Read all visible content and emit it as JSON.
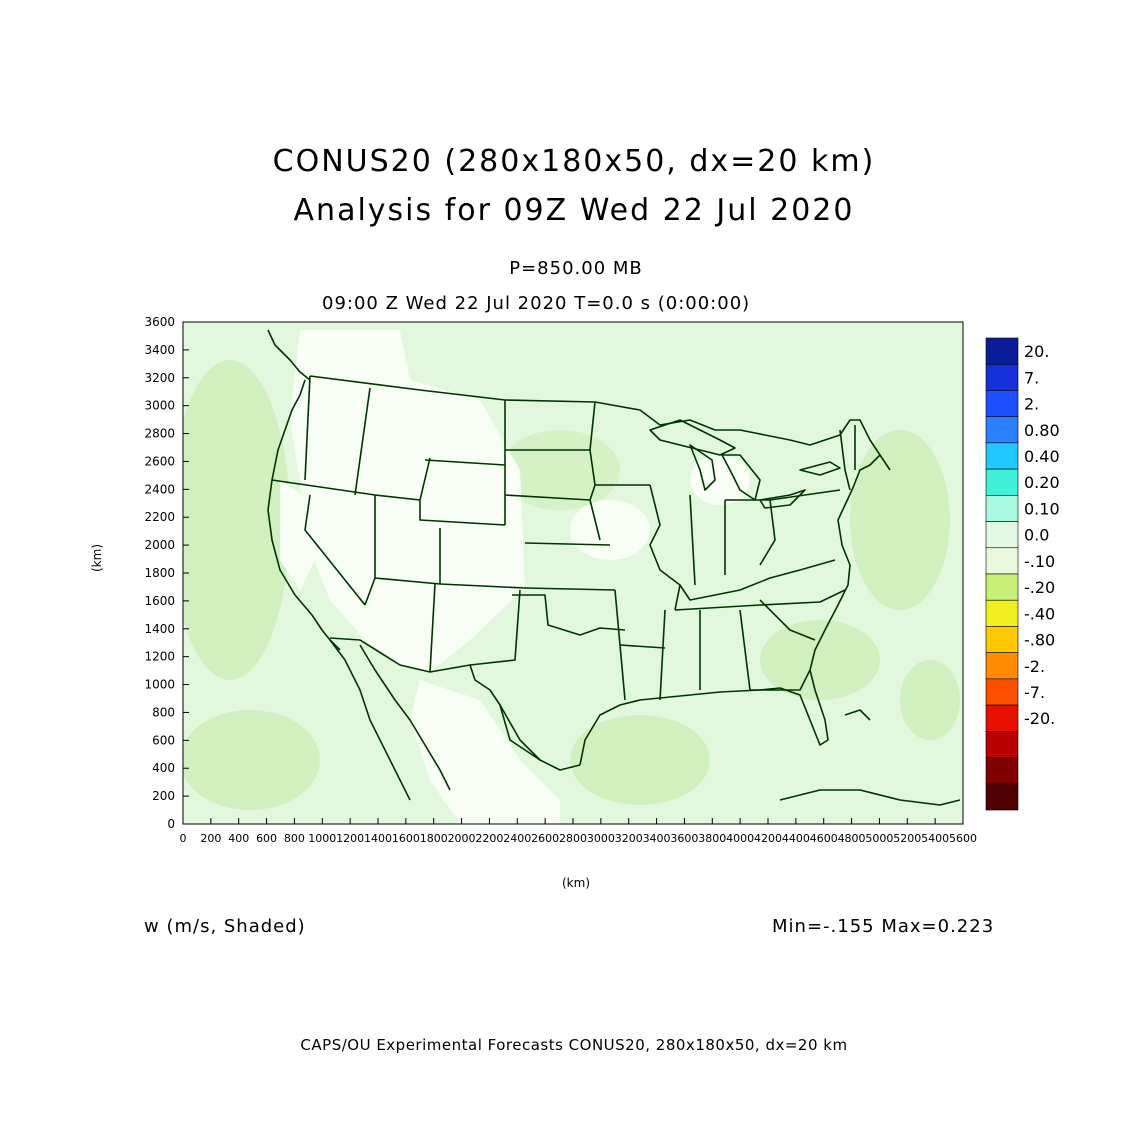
{
  "title_line1": "CONUS20 (280x180x50, dx=20 km)",
  "title_line2": "Analysis for 09Z Wed 22 Jul 2020",
  "level_label": "P=850.00 MB",
  "time_label": "09:00 Z Wed 22 Jul 2020   T=0.0 s (0:00:00)",
  "y_axis_title": "(km)",
  "x_axis_title": "(km)",
  "field_label": "w (m/s, Shaded)",
  "min_max": "Min=-.155  Max=0.223",
  "footer": "CAPS/OU Experimental Forecasts  CONUS20, 280x180x50, dx=20 km",
  "x_ticks": [
    "0",
    "200",
    "400",
    "600",
    "800",
    "1000",
    "1200",
    "1400",
    "1600",
    "1800",
    "2000",
    "2200",
    "2400",
    "2600",
    "2800",
    "3000",
    "3200",
    "3400",
    "3600",
    "3800",
    "4000",
    "4200",
    "4400",
    "4600",
    "4800",
    "5000",
    "5200",
    "5400",
    "5600"
  ],
  "y_ticks": [
    "0",
    "200",
    "400",
    "600",
    "800",
    "1000",
    "1200",
    "1400",
    "1600",
    "1800",
    "2000",
    "2200",
    "2400",
    "2600",
    "2800",
    "3000",
    "3200",
    "3400",
    "3600"
  ],
  "x_range": [
    0,
    5600
  ],
  "y_range": [
    0,
    3600
  ],
  "colorbar": [
    {
      "label": "20.",
      "color": "#0a1e9a"
    },
    {
      "label": "7.",
      "color": "#1530d8"
    },
    {
      "label": "2.",
      "color": "#1e50ff"
    },
    {
      "label": "0.80",
      "color": "#2a80ff"
    },
    {
      "label": "0.40",
      "color": "#20c8ff"
    },
    {
      "label": "0.20",
      "color": "#40f0d8"
    },
    {
      "label": "0.10",
      "color": "#a8f8e0"
    },
    {
      "label": "0.0",
      "color": "#e2f8e2"
    },
    {
      "label": "-.10",
      "color": "#eaf8de"
    },
    {
      "label": "-.20",
      "color": "#c8f078"
    },
    {
      "label": "-.40",
      "color": "#f0f020"
    },
    {
      "label": "-.80",
      "color": "#ffc800"
    },
    {
      "label": "-2.",
      "color": "#ff8c00"
    },
    {
      "label": "-7.",
      "color": "#ff5000"
    },
    {
      "label": "-20.",
      "color": "#e81000"
    },
    {
      "label": "",
      "color": "#b80000"
    },
    {
      "label": "",
      "color": "#800000"
    },
    {
      "label": "",
      "color": "#500000"
    }
  ],
  "colors": {
    "field_base": "#e2f8dc",
    "field_dark": "#d0f0c0",
    "field_zero": "#f2fcee",
    "map_lines": "#003300"
  }
}
